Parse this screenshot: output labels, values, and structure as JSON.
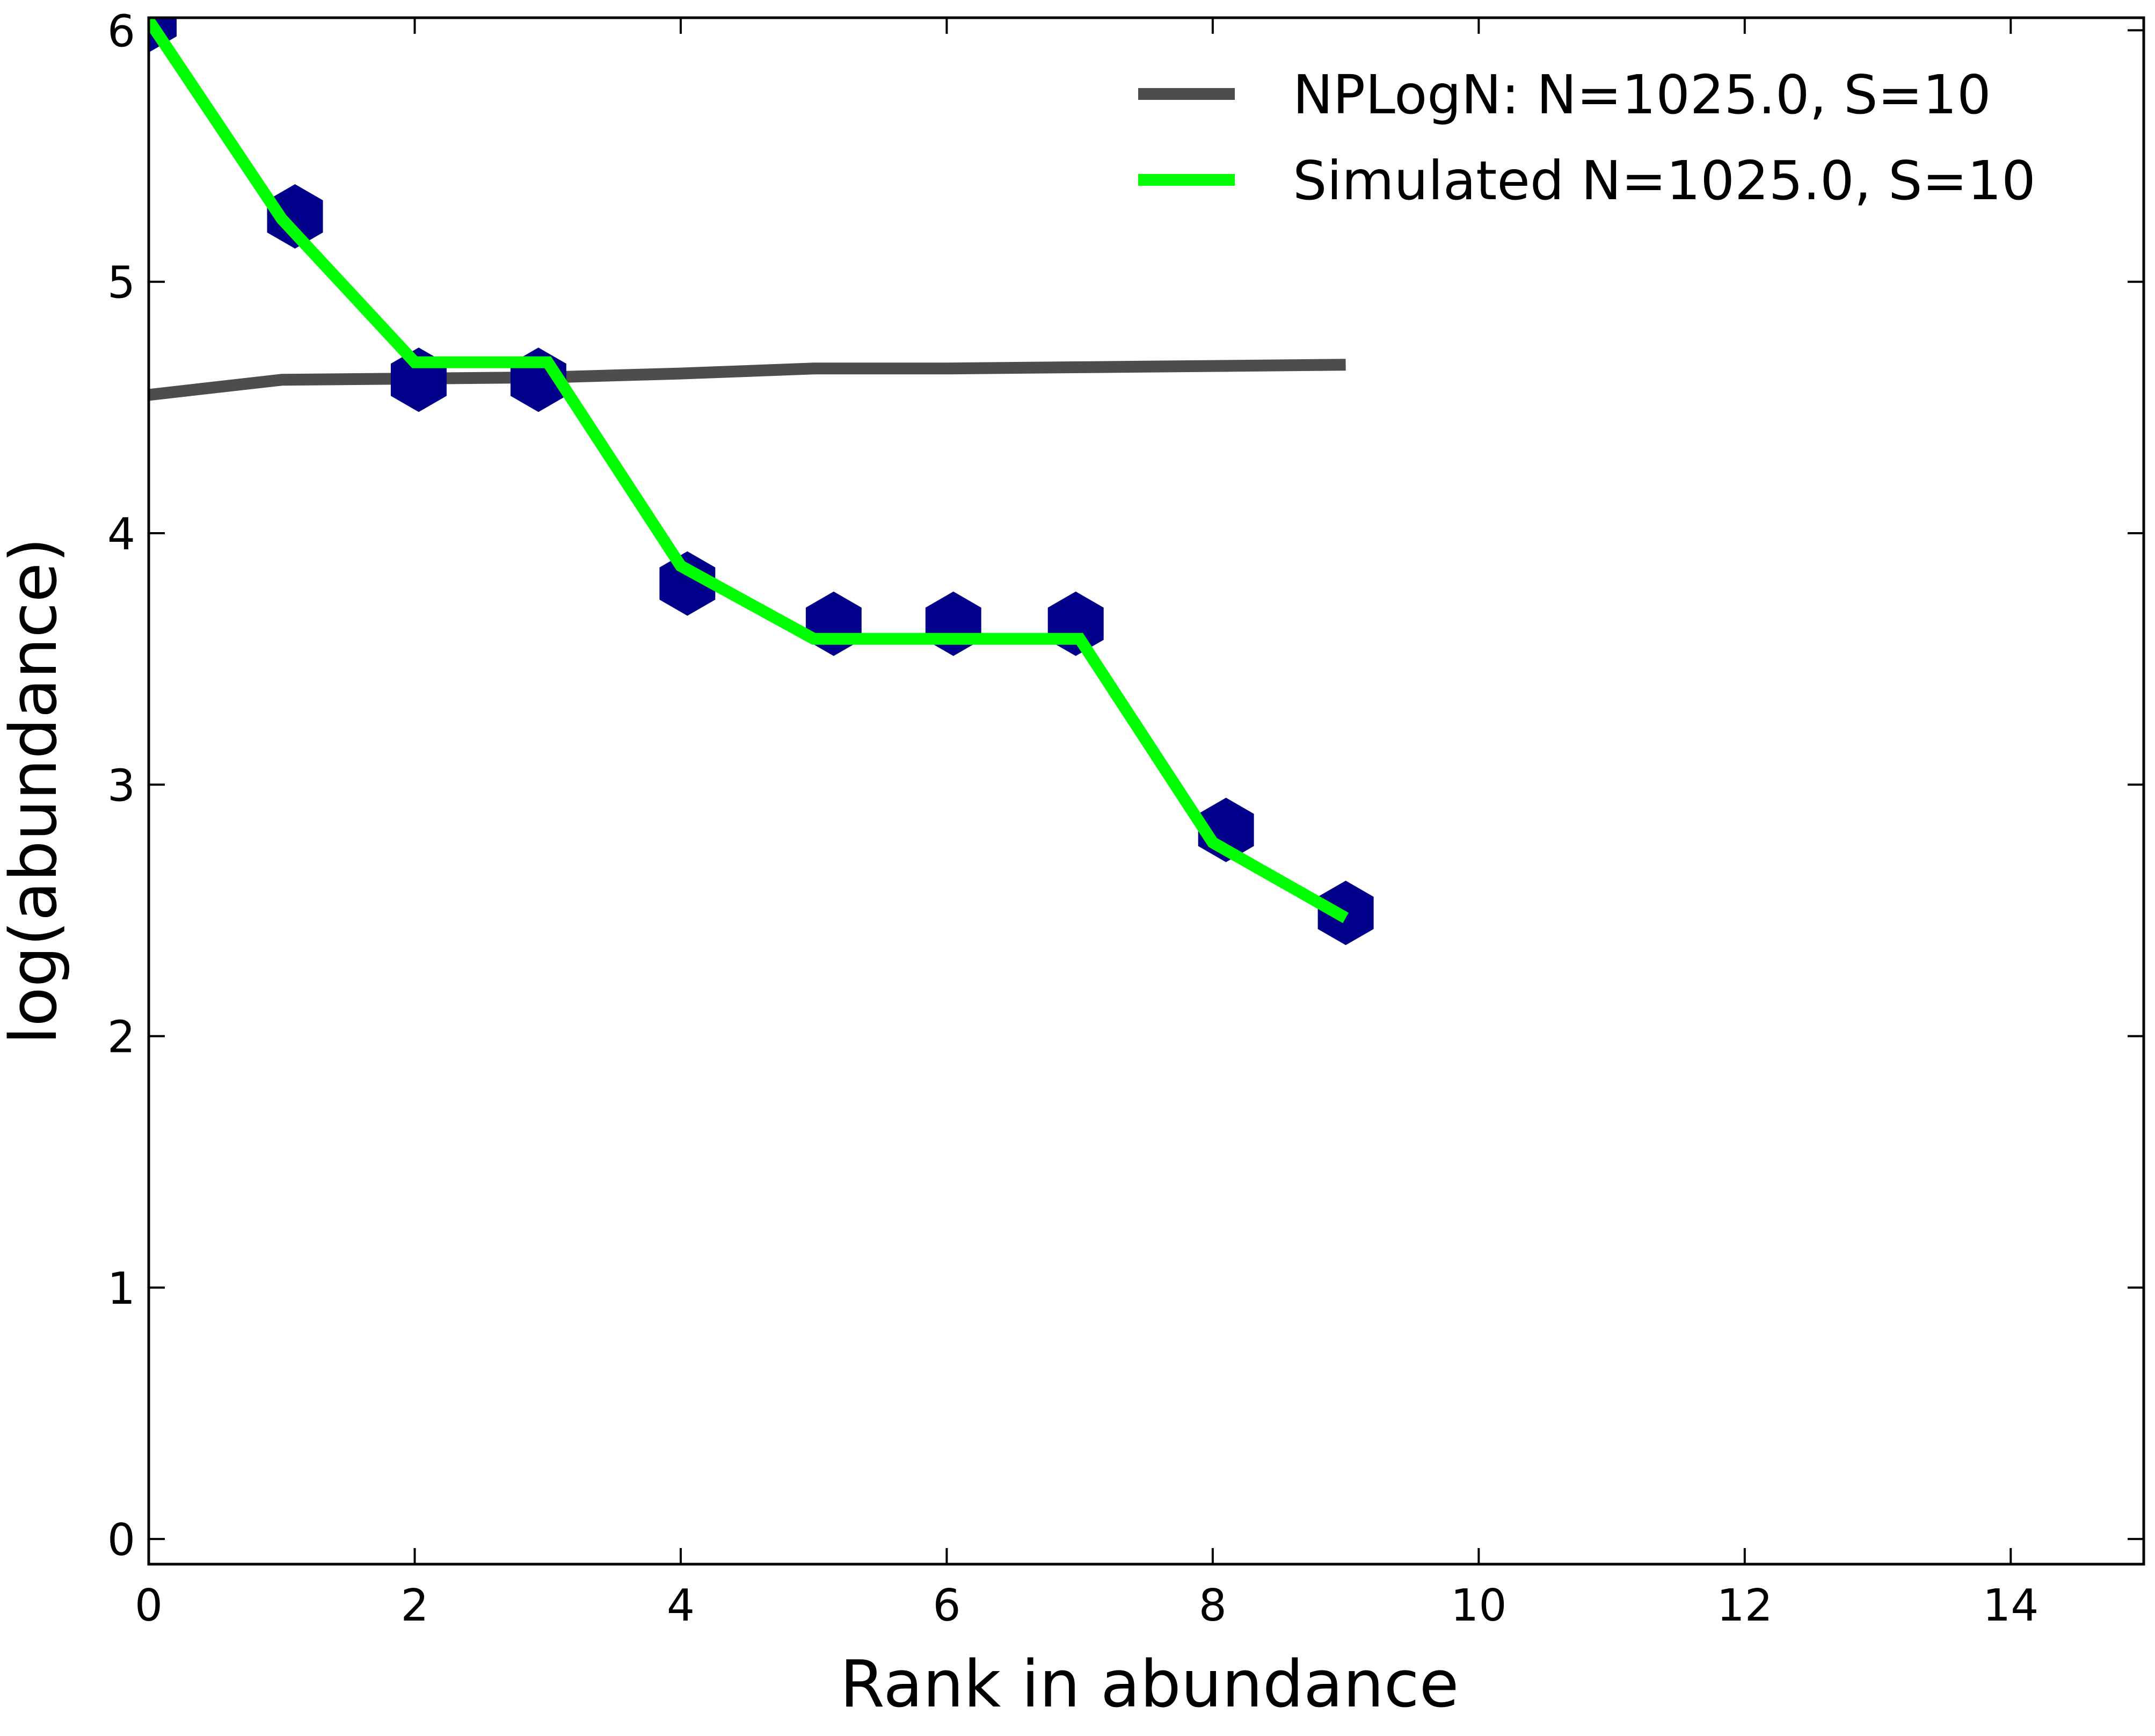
{
  "chart_data": {
    "type": "line",
    "title": "",
    "xlabel": "Rank in abundance",
    "ylabel": "log(abundance)",
    "xlim": [
      0,
      15
    ],
    "ylim": [
      -0.1,
      6.05
    ],
    "xticks": [
      0,
      2,
      4,
      6,
      8,
      10,
      12,
      14
    ],
    "yticks": [
      0,
      1,
      2,
      3,
      4,
      5,
      6
    ],
    "grid": false,
    "legend_position": "top-right",
    "series": [
      {
        "name": "NPLogN: N=1025.0, S=10",
        "kind": "line",
        "color": "#4d4d4d",
        "x": [
          0,
          1,
          2,
          3,
          4,
          5,
          6,
          7,
          8,
          9
        ],
        "y": [
          4.55,
          4.61,
          4.615,
          4.62,
          4.635,
          4.655,
          4.655,
          4.66,
          4.665,
          4.67
        ]
      },
      {
        "name": "Simulated N=1025.0, S=10",
        "kind": "line",
        "color": "#00ff00",
        "x": [
          0,
          1,
          2,
          3,
          4,
          5,
          6,
          7,
          8,
          9
        ],
        "y": [
          6.04,
          5.25,
          4.68,
          4.68,
          3.87,
          3.58,
          3.58,
          3.58,
          2.77,
          2.47
        ]
      },
      {
        "kind": "scatter",
        "marker": "hexagon",
        "color": "#00008b",
        "x": [
          0,
          1.1,
          2.03,
          2.93,
          4.05,
          5.15,
          6.05,
          6.97,
          8.1,
          9.0
        ],
        "y": [
          6.04,
          5.26,
          4.61,
          4.61,
          3.8,
          3.64,
          3.64,
          3.64,
          2.82,
          2.49
        ]
      }
    ]
  }
}
